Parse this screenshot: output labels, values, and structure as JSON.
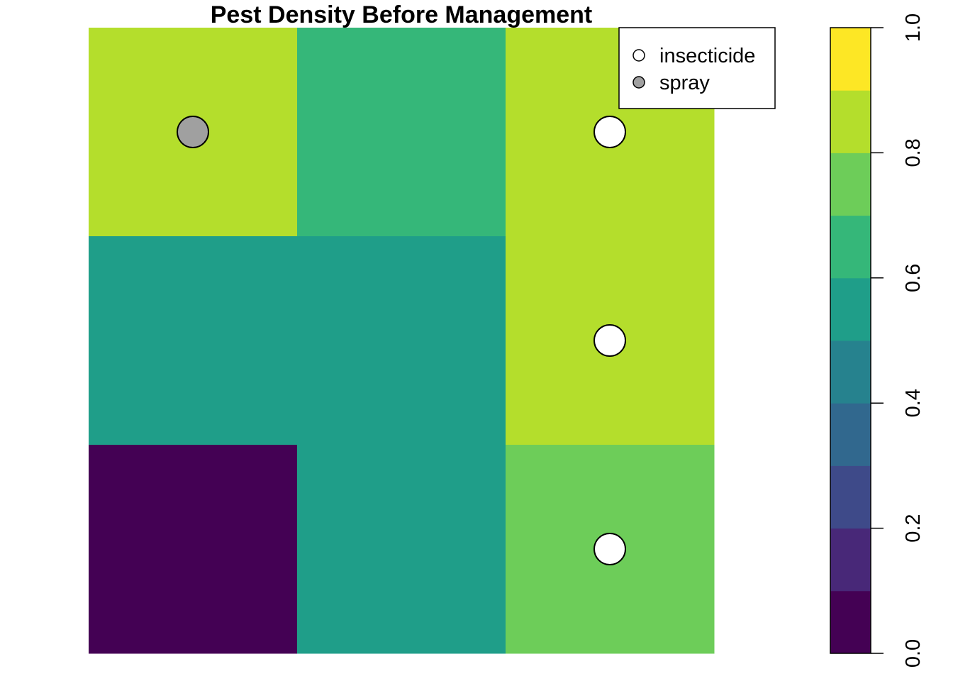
{
  "chart_data": {
    "type": "heatmap",
    "title": "Pest Density Before Management",
    "grid": {
      "rows": 3,
      "cols": 3,
      "values": [
        [
          0.85,
          0.65,
          0.85
        ],
        [
          0.55,
          0.55,
          0.85
        ],
        [
          0.05,
          0.55,
          0.75
        ]
      ]
    },
    "points": [
      {
        "row": 0,
        "col": 0,
        "treatment": "spray"
      },
      {
        "row": 0,
        "col": 2,
        "treatment": "insecticide"
      },
      {
        "row": 1,
        "col": 2,
        "treatment": "insecticide"
      },
      {
        "row": 2,
        "col": 2,
        "treatment": "insecticide"
      }
    ],
    "legend": {
      "placement": "top-right",
      "entries": [
        {
          "label": "insecticide",
          "fill": "#ffffff"
        },
        {
          "label": "spray",
          "fill": "#a0a0a0"
        }
      ]
    },
    "colorbar": {
      "range": [
        0,
        1
      ],
      "breaks": [
        0.0,
        0.1,
        0.2,
        0.3,
        0.4,
        0.5,
        0.6,
        0.7,
        0.8,
        0.9,
        1.0
      ],
      "colors": [
        "#440154",
        "#482878",
        "#3E4A89",
        "#31688E",
        "#26828E",
        "#1F9E89",
        "#35B779",
        "#6DCD59",
        "#B4DE2C",
        "#FDE725"
      ],
      "tick_values": [
        0.0,
        0.2,
        0.4,
        0.6,
        0.8,
        1.0
      ],
      "tick_labels": [
        "0.0",
        "0.2",
        "0.4",
        "0.6",
        "0.8",
        "1.0"
      ]
    }
  }
}
